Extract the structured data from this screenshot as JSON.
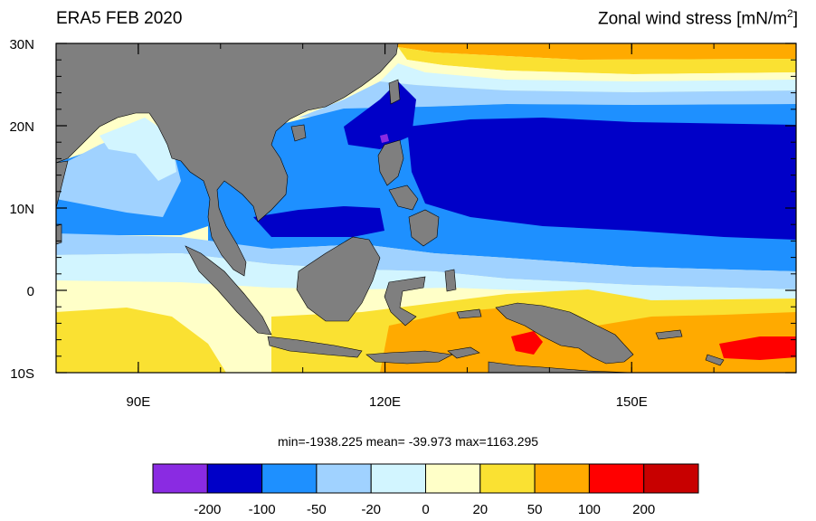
{
  "header": {
    "title_left": "ERA5 FEB 2020",
    "title_right": "Zonal wind stress [mN/m",
    "title_right_sup": "2",
    "title_right_close": "]"
  },
  "map": {
    "lon_range": [
      80,
      170
    ],
    "lat_range": [
      -10,
      30
    ],
    "lat_ticks": [
      {
        "value": 30,
        "label": "30N"
      },
      {
        "value": 20,
        "label": "20N"
      },
      {
        "value": 10,
        "label": "10N"
      },
      {
        "value": 0,
        "label": "0"
      },
      {
        "value": -10,
        "label": "10S"
      }
    ],
    "lon_ticks": [
      {
        "value": 90,
        "label": "90E"
      },
      {
        "value": 120,
        "label": "120E"
      },
      {
        "value": 150,
        "label": "150E"
      }
    ],
    "land_color": "#7f7f7f"
  },
  "stats": {
    "text": "min=-1938.225  mean= -39.973  max=1163.295"
  },
  "colorbar": {
    "colors": [
      "#8a2be2",
      "#0000c8",
      "#1e90ff",
      "#a0d2ff",
      "#d2f5ff",
      "#ffffc8",
      "#fae132",
      "#ffaa00",
      "#ff0000",
      "#c80000"
    ],
    "labels": [
      "-200",
      "-100",
      "-50",
      "-20",
      "0",
      "20",
      "50",
      "100",
      "200"
    ]
  }
}
